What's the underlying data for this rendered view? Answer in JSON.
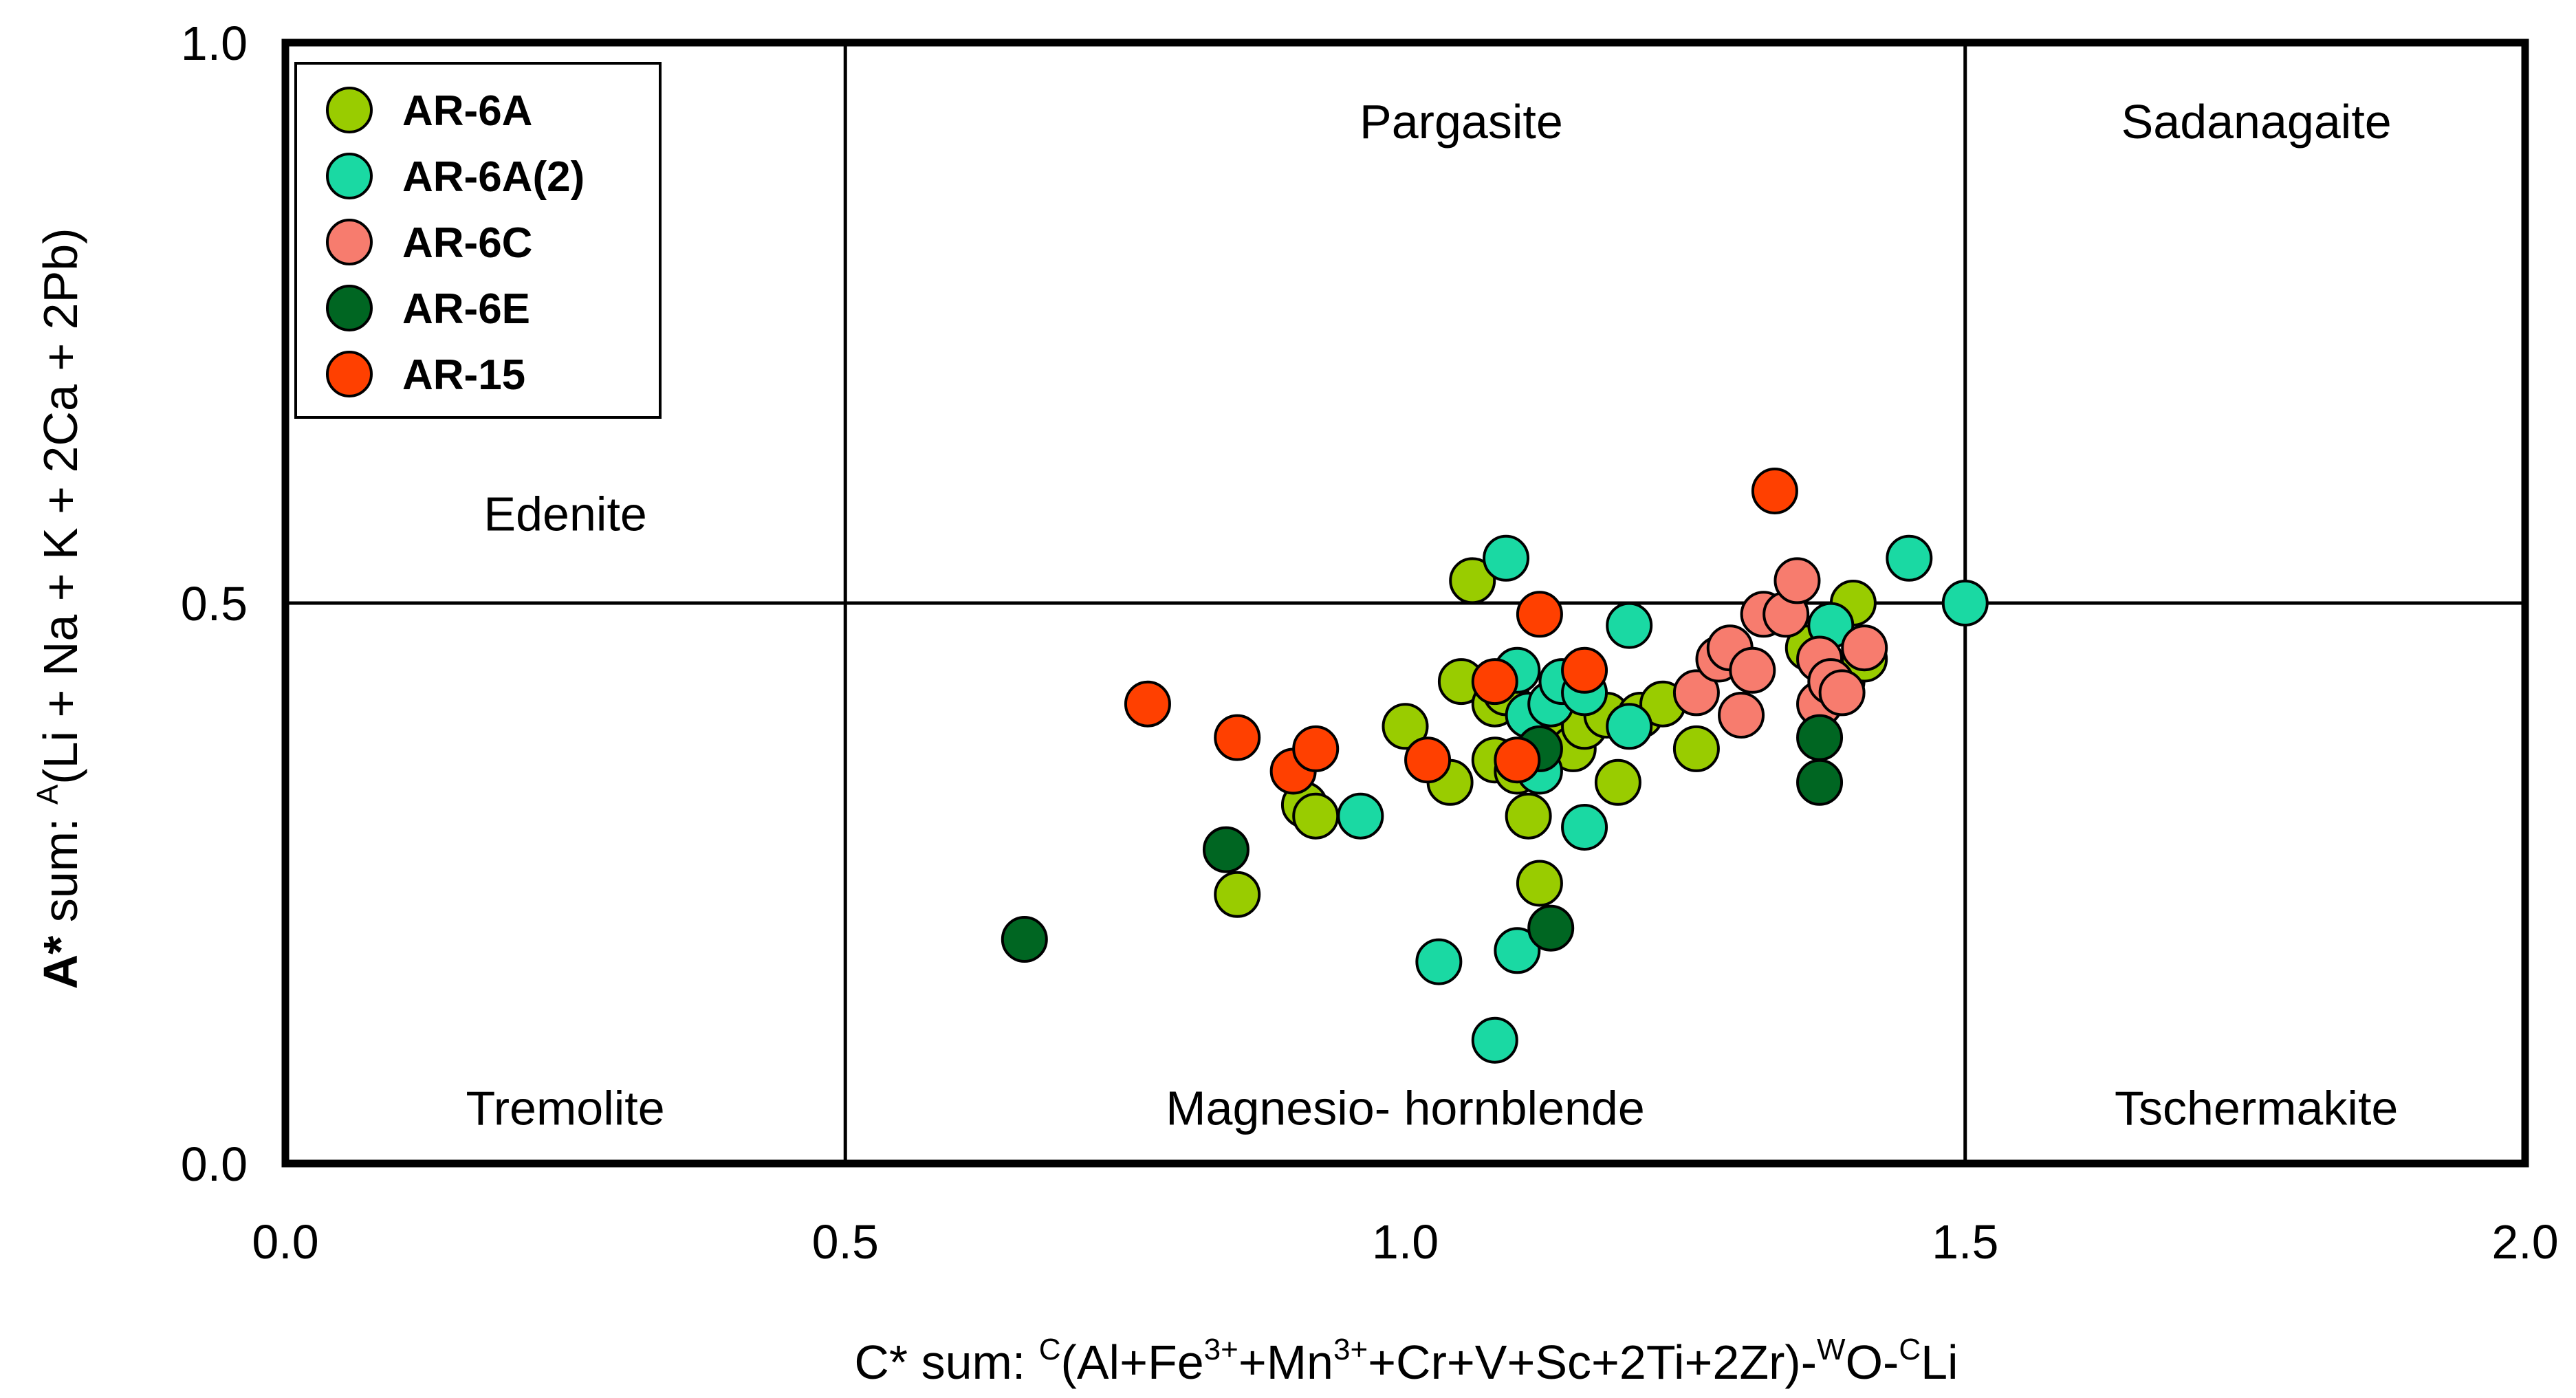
{
  "chart_data": {
    "type": "scatter",
    "xlim": [
      0.0,
      2.0
    ],
    "ylim": [
      0.0,
      1.0
    ],
    "x_ticks": [
      "0.0",
      "0.5",
      "1.0",
      "1.5",
      "2.0"
    ],
    "y_ticks": [
      "0.0",
      "0.5",
      "1.0"
    ],
    "xlabel": {
      "t1": "C* sum: ",
      "s1": "C",
      "t2": "(Al+Fe",
      "s2": "3+",
      "t3": "+Mn",
      "s3": "3+",
      "t4": "+Cr+V+Sc+2Ti+2Zr)-",
      "s4": "W",
      "t5": "O-",
      "s5": "C",
      "t6": "Li"
    },
    "ylabel": {
      "bold": "A*",
      "t1": " sum: ",
      "s1": "A",
      "t2": "(Li + Na + K + 2Ca + 2Pb)"
    },
    "dividers": {
      "x": [
        0.5,
        1.5
      ],
      "y": [
        0.5
      ]
    },
    "regions": [
      {
        "name": "Edenite",
        "x": 0.25,
        "y": 0.58
      },
      {
        "name": "Pargasite",
        "x": 1.05,
        "y": 0.93
      },
      {
        "name": "Sadanagaite",
        "x": 1.76,
        "y": 0.93
      },
      {
        "name": "Tremolite",
        "x": 0.25,
        "y": 0.05
      },
      {
        "name": "Magnesio- hornblende",
        "x": 1.0,
        "y": 0.05
      },
      {
        "name": "Tschermakite",
        "x": 1.76,
        "y": 0.05
      }
    ],
    "series": [
      {
        "name": "AR-6A",
        "color": "#99cc00",
        "points": [
          [
            0.91,
            0.32
          ],
          [
            0.92,
            0.31
          ],
          [
            0.85,
            0.24
          ],
          [
            1.0,
            0.39
          ],
          [
            1.04,
            0.34
          ],
          [
            1.05,
            0.43
          ],
          [
            1.06,
            0.52
          ],
          [
            1.08,
            0.41
          ],
          [
            1.09,
            0.42
          ],
          [
            1.08,
            0.36
          ],
          [
            1.1,
            0.35
          ],
          [
            1.11,
            0.31
          ],
          [
            1.12,
            0.4
          ],
          [
            1.13,
            0.38
          ],
          [
            1.15,
            0.37
          ],
          [
            1.16,
            0.39
          ],
          [
            1.18,
            0.4
          ],
          [
            1.19,
            0.34
          ],
          [
            1.21,
            0.4
          ],
          [
            1.23,
            0.41
          ],
          [
            1.26,
            0.37
          ],
          [
            1.12,
            0.25
          ],
          [
            1.36,
            0.46
          ],
          [
            1.39,
            0.43
          ],
          [
            1.41,
            0.45
          ],
          [
            1.4,
            0.5
          ]
        ]
      },
      {
        "name": "AR-6A(2)",
        "color": "#1ad9a3",
        "points": [
          [
            0.96,
            0.31
          ],
          [
            1.03,
            0.18
          ],
          [
            1.08,
            0.11
          ],
          [
            1.1,
            0.19
          ],
          [
            1.09,
            0.54
          ],
          [
            1.1,
            0.44
          ],
          [
            1.11,
            0.4
          ],
          [
            1.12,
            0.35
          ],
          [
            1.13,
            0.41
          ],
          [
            1.14,
            0.43
          ],
          [
            1.16,
            0.42
          ],
          [
            1.16,
            0.3
          ],
          [
            1.2,
            0.48
          ],
          [
            1.2,
            0.39
          ],
          [
            1.38,
            0.48
          ],
          [
            1.45,
            0.54
          ],
          [
            1.5,
            0.5
          ]
        ]
      },
      {
        "name": "AR-6C",
        "color": "#f77c6e",
        "points": [
          [
            1.26,
            0.42
          ],
          [
            1.28,
            0.45
          ],
          [
            1.29,
            0.46
          ],
          [
            1.3,
            0.4
          ],
          [
            1.31,
            0.44
          ],
          [
            1.32,
            0.49
          ],
          [
            1.34,
            0.49
          ],
          [
            1.35,
            0.52
          ],
          [
            1.37,
            0.41
          ],
          [
            1.37,
            0.45
          ],
          [
            1.38,
            0.43
          ],
          [
            1.39,
            0.42
          ],
          [
            1.41,
            0.46
          ]
        ]
      },
      {
        "name": "AR-6E",
        "color": "#006622",
        "points": [
          [
            0.66,
            0.2
          ],
          [
            0.84,
            0.28
          ],
          [
            1.12,
            0.37
          ],
          [
            1.13,
            0.21
          ],
          [
            1.37,
            0.34
          ],
          [
            1.37,
            0.38
          ]
        ]
      },
      {
        "name": "AR-15",
        "color": "#ff4000",
        "points": [
          [
            0.77,
            0.41
          ],
          [
            0.85,
            0.38
          ],
          [
            0.9,
            0.35
          ],
          [
            0.92,
            0.37
          ],
          [
            1.02,
            0.36
          ],
          [
            1.08,
            0.43
          ],
          [
            1.1,
            0.36
          ],
          [
            1.12,
            0.49
          ],
          [
            1.16,
            0.44
          ],
          [
            1.33,
            0.6
          ]
        ]
      }
    ]
  }
}
